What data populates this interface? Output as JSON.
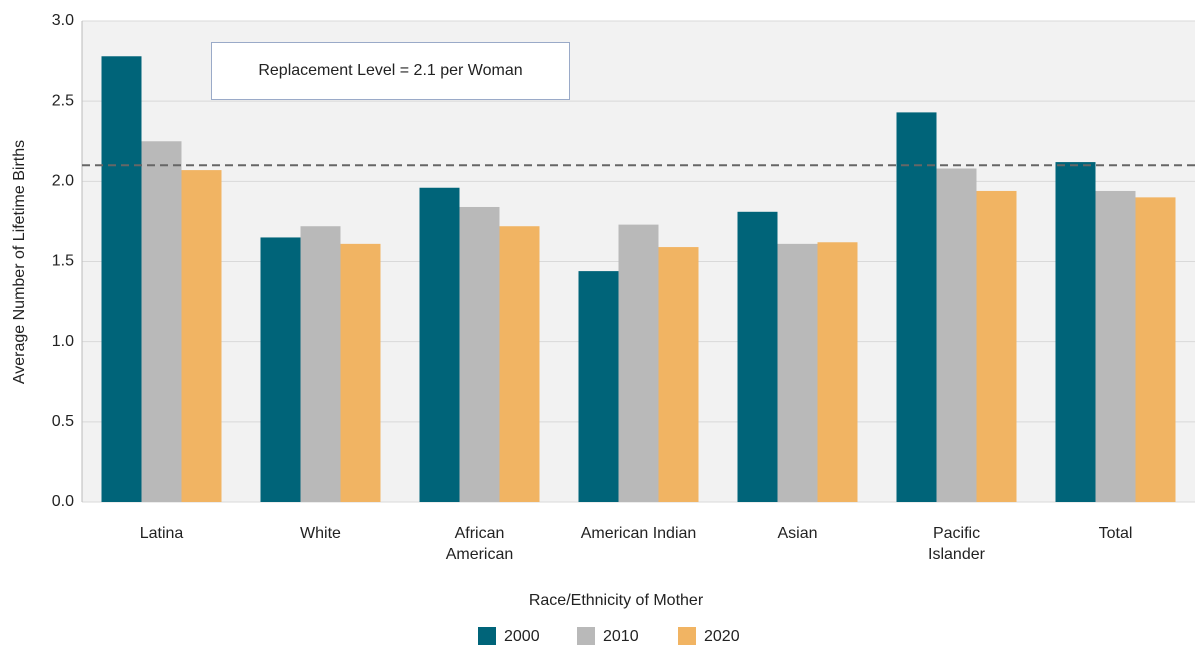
{
  "chart_data": {
    "type": "bar",
    "ylabel": "Average Number of Lifetime Births",
    "xlabel": "Race/Ethnicity of Mother",
    "categories": [
      "Latina",
      "White",
      "African\nAmerican",
      "American Indian",
      "Asian",
      "Pacific\nIslander",
      "Total"
    ],
    "series": [
      {
        "name": "2000",
        "color": "#006479",
        "values": [
          2.78,
          1.65,
          1.96,
          1.44,
          1.81,
          2.43,
          2.12
        ]
      },
      {
        "name": "2010",
        "color": "#b9b9b9",
        "values": [
          2.25,
          1.72,
          1.84,
          1.73,
          1.61,
          2.08,
          1.94
        ]
      },
      {
        "name": "2020",
        "color": "#f1b463",
        "values": [
          2.07,
          1.61,
          1.72,
          1.59,
          1.62,
          1.94,
          1.9
        ]
      }
    ],
    "ylim": [
      0,
      3
    ],
    "yticks": [
      {
        "value": 0,
        "label": "0.0"
      },
      0.5,
      {
        "value": 1,
        "label": "1.0"
      },
      1.5,
      {
        "value": 2,
        "label": "2.0"
      },
      2.5,
      {
        "value": 3,
        "label": "3.0"
      }
    ],
    "grid": true,
    "reference_line": {
      "value": 2.1,
      "label": "Replacement Level = 2.1 per Woman"
    },
    "legend": "bottom"
  }
}
